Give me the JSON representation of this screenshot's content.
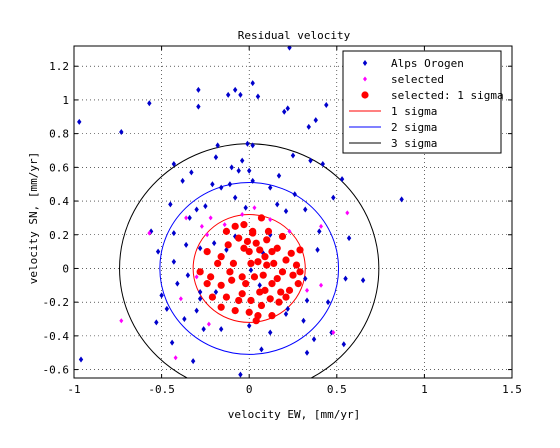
{
  "chart_data": {
    "type": "scatter",
    "title": "Residual velocity",
    "xlabel": "velocity EW, [mm/yr]",
    "ylabel": "velocity SN, [mm/yr]",
    "xlim": [
      -1,
      1.5
    ],
    "ylim": [
      -0.65,
      1.32
    ],
    "xticks": [
      -1,
      -0.5,
      0,
      0.5,
      1,
      1.5
    ],
    "xtick_labels": [
      "-1",
      "-0.5",
      "0",
      "0.5",
      "1",
      "1.5"
    ],
    "yticks": [
      -0.6,
      -0.4,
      -0.2,
      0,
      0.2,
      0.4,
      0.6,
      0.8,
      1,
      1.2
    ],
    "ytick_labels": [
      "-0.6",
      "-0.4",
      "-0.2",
      "0",
      "0.2",
      "0.4",
      "0.6",
      "0.8",
      "1",
      "1.2"
    ],
    "grid": true,
    "legend_position": "top-right",
    "legend": [
      "Alps Orogen",
      "selected",
      "selected: 1 sigma",
      "1 sigma",
      "2 sigma",
      "3 sigma"
    ],
    "colors": {
      "alps": "#0000cc",
      "selected": "#ff00ff",
      "selected_1sigma": "#ff0000",
      "sigma1": "#ff0000",
      "sigma2": "#0000ff",
      "sigma3": "#000000"
    },
    "circles": [
      {
        "name": "1 sigma",
        "radius": 0.32
      },
      {
        "name": "2 sigma",
        "radius": 0.51
      },
      {
        "name": "3 sigma",
        "radius": 0.74
      }
    ],
    "series": [
      {
        "name": "Alps Orogen",
        "marker": "dot",
        "points": [
          [
            0.23,
            1.31
          ],
          [
            -0.29,
            1.06
          ],
          [
            -0.29,
            0.96
          ],
          [
            -0.08,
            1.06
          ],
          [
            0.02,
            1.1
          ],
          [
            -0.12,
            1.03
          ],
          [
            -0.05,
            1.03
          ],
          [
            0.2,
            0.93
          ],
          [
            0.22,
            0.95
          ],
          [
            0.44,
            0.97
          ],
          [
            0.38,
            0.88
          ],
          [
            -0.57,
            0.98
          ],
          [
            -0.73,
            0.81
          ],
          [
            -0.97,
            0.87
          ],
          [
            -0.96,
            -0.54
          ],
          [
            -0.43,
            0.62
          ],
          [
            0.05,
            1.02
          ],
          [
            0.34,
            0.84
          ],
          [
            -0.18,
            0.73
          ],
          [
            -0.01,
            0.74
          ],
          [
            0.02,
            0.73
          ],
          [
            0.25,
            0.67
          ],
          [
            -0.33,
            0.57
          ],
          [
            -0.19,
            0.66
          ],
          [
            -0.04,
            0.64
          ],
          [
            -0.06,
            0.58
          ],
          [
            0.0,
            0.58
          ],
          [
            -0.1,
            0.6
          ],
          [
            0.17,
            0.55
          ],
          [
            0.35,
            0.64
          ],
          [
            0.42,
            0.62
          ],
          [
            0.53,
            0.53
          ],
          [
            0.87,
            0.41
          ],
          [
            -0.38,
            0.52
          ],
          [
            -0.21,
            0.5
          ],
          [
            -0.16,
            0.48
          ],
          [
            -0.11,
            0.5
          ],
          [
            0.02,
            0.52
          ],
          [
            0.12,
            0.48
          ],
          [
            0.26,
            0.44
          ],
          [
            0.32,
            0.35
          ],
          [
            0.48,
            0.42
          ],
          [
            -0.45,
            0.38
          ],
          [
            -0.3,
            0.35
          ],
          [
            -0.34,
            0.3
          ],
          [
            -0.25,
            0.37
          ],
          [
            -0.08,
            0.42
          ],
          [
            -0.02,
            0.36
          ],
          [
            0.16,
            0.38
          ],
          [
            0.21,
            0.34
          ],
          [
            -0.56,
            0.22
          ],
          [
            -0.43,
            0.21
          ],
          [
            -0.36,
            0.14
          ],
          [
            -0.2,
            0.15
          ],
          [
            -0.28,
            0.12
          ],
          [
            0.4,
            0.22
          ],
          [
            0.57,
            0.18
          ],
          [
            -0.52,
            0.1
          ],
          [
            -0.43,
            0.04
          ],
          [
            0.39,
            0.11
          ],
          [
            0.32,
            -0.06
          ],
          [
            0.55,
            -0.06
          ],
          [
            0.65,
            -0.07
          ],
          [
            -0.5,
            -0.16
          ],
          [
            -0.41,
            -0.09
          ],
          [
            -0.35,
            -0.04
          ],
          [
            -0.3,
            -0.25
          ],
          [
            -0.19,
            -0.14
          ],
          [
            -0.28,
            -0.18
          ],
          [
            0.45,
            -0.2
          ],
          [
            0.33,
            -0.19
          ],
          [
            0.22,
            -0.24
          ],
          [
            -0.47,
            -0.24
          ],
          [
            -0.37,
            -0.3
          ],
          [
            -0.26,
            -0.36
          ],
          [
            -0.16,
            -0.36
          ],
          [
            0.0,
            -0.34
          ],
          [
            0.12,
            -0.38
          ],
          [
            0.21,
            -0.27
          ],
          [
            0.31,
            -0.31
          ],
          [
            0.37,
            -0.42
          ],
          [
            -0.53,
            -0.32
          ],
          [
            -0.44,
            -0.44
          ],
          [
            0.07,
            -0.48
          ],
          [
            0.33,
            -0.5
          ],
          [
            0.47,
            -0.38
          ],
          [
            0.54,
            -0.45
          ],
          [
            -0.32,
            -0.55
          ],
          [
            -0.05,
            -0.63
          ],
          [
            -0.28,
            -0.14
          ],
          [
            0.12,
            0.2
          ],
          [
            -0.08,
            0.19
          ],
          [
            -0.13,
            0.11
          ],
          [
            0.06,
            -0.1
          ],
          [
            0.08,
            0.09
          ],
          [
            0.01,
            -0.01
          ]
        ]
      },
      {
        "name": "selected",
        "marker": "diamond",
        "points": [
          [
            -0.57,
            0.21
          ],
          [
            -0.36,
            0.3
          ],
          [
            -0.27,
            0.25
          ],
          [
            -0.22,
            0.3
          ],
          [
            -0.14,
            0.26
          ],
          [
            0.03,
            0.36
          ],
          [
            -0.04,
            0.32
          ],
          [
            0.23,
            0.22
          ],
          [
            0.12,
            0.29
          ],
          [
            0.41,
            0.25
          ],
          [
            0.56,
            0.33
          ],
          [
            -0.73,
            -0.31
          ],
          [
            -0.39,
            -0.18
          ],
          [
            -0.3,
            -0.05
          ],
          [
            -0.23,
            -0.33
          ],
          [
            0.33,
            -0.13
          ],
          [
            0.48,
            -0.38
          ],
          [
            -0.42,
            -0.53
          ],
          [
            0.41,
            -0.1
          ],
          [
            -0.24,
            0.2
          ]
        ]
      },
      {
        "name": "selected: 1 sigma",
        "marker": "circle",
        "points": [
          [
            -0.08,
            0.25
          ],
          [
            -0.03,
            0.26
          ],
          [
            0.07,
            0.3
          ],
          [
            0.02,
            0.21
          ],
          [
            -0.06,
            0.18
          ],
          [
            -0.01,
            0.16
          ],
          [
            0.04,
            0.15
          ],
          [
            0.1,
            0.17
          ],
          [
            0.13,
            0.1
          ],
          [
            -0.12,
            0.14
          ],
          [
            -0.03,
            0.12
          ],
          [
            0.0,
            0.1
          ],
          [
            0.06,
            0.11
          ],
          [
            0.09,
            0.07
          ],
          [
            0.19,
            0.19
          ],
          [
            0.16,
            0.12
          ],
          [
            0.21,
            0.05
          ],
          [
            0.24,
            0.09
          ],
          [
            0.29,
            0.11
          ],
          [
            -0.24,
            0.1
          ],
          [
            -0.16,
            0.07
          ],
          [
            -0.18,
            0.03
          ],
          [
            -0.09,
            0.03
          ],
          [
            0.01,
            0.03
          ],
          [
            0.05,
            0.04
          ],
          [
            0.14,
            0.03
          ],
          [
            0.19,
            -0.02
          ],
          [
            0.25,
            -0.04
          ],
          [
            0.28,
            -0.09
          ],
          [
            0.23,
            -0.13
          ],
          [
            -0.28,
            -0.02
          ],
          [
            -0.24,
            -0.09
          ],
          [
            -0.16,
            -0.1
          ],
          [
            -0.1,
            -0.07
          ],
          [
            -0.04,
            -0.05
          ],
          [
            0.03,
            -0.05
          ],
          [
            0.08,
            -0.04
          ],
          [
            0.13,
            -0.09
          ],
          [
            0.18,
            -0.14
          ],
          [
            -0.21,
            -0.17
          ],
          [
            -0.13,
            -0.17
          ],
          [
            -0.06,
            -0.19
          ],
          [
            0.01,
            -0.19
          ],
          [
            0.07,
            -0.22
          ],
          [
            0.12,
            -0.18
          ],
          [
            0.17,
            -0.2
          ],
          [
            0.21,
            -0.17
          ],
          [
            -0.16,
            -0.23
          ],
          [
            -0.08,
            -0.25
          ],
          [
            0.0,
            -0.26
          ],
          [
            0.05,
            -0.28
          ],
          [
            0.13,
            -0.28
          ],
          [
            -0.04,
            -0.15
          ],
          [
            0.09,
            -0.13
          ],
          [
            -0.02,
            -0.09
          ],
          [
            0.02,
            0.22
          ],
          [
            0.11,
            0.22
          ],
          [
            -0.13,
            0.22
          ],
          [
            0.29,
            -0.02
          ],
          [
            -0.22,
            -0.05
          ],
          [
            0.06,
            -0.14
          ],
          [
            0.16,
            -0.06
          ],
          [
            -0.11,
            -0.02
          ],
          [
            0.1,
            0.02
          ],
          [
            0.04,
            -0.31
          ],
          [
            0.27,
            0.02
          ]
        ]
      }
    ]
  }
}
